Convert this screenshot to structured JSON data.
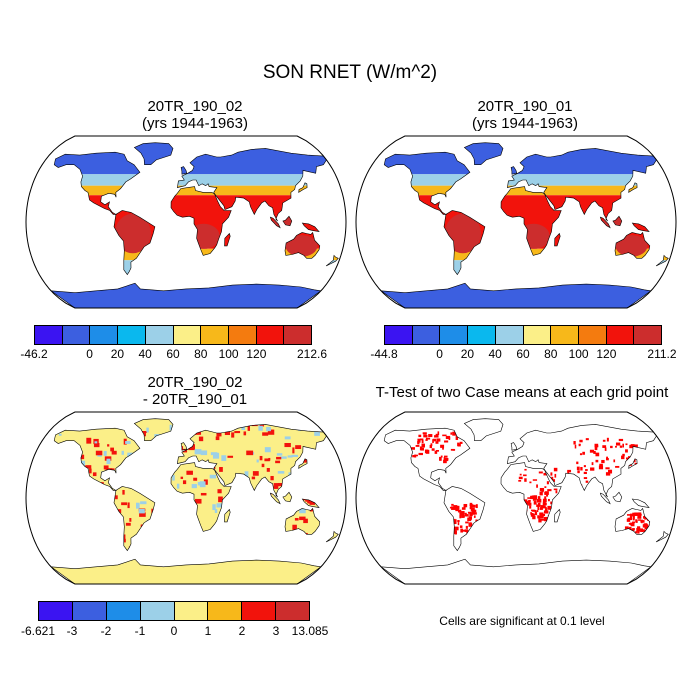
{
  "figure": {
    "title": "SON RNET (W/m^2)",
    "note": "Cells are significant at 0.1 level"
  },
  "panels": [
    {
      "title_line1": "20TR_190_02",
      "title_line2": "(yrs 1944-1963)"
    },
    {
      "title_line1": "20TR_190_01",
      "title_line2": "(yrs 1944-1963)"
    },
    {
      "title_line1": "20TR_190_02",
      "title_line2": "- 20TR_190_01"
    },
    {
      "title_line1": "T-Test of two Case means at each grid point",
      "title_line2": ""
    }
  ],
  "colorbars": [
    {
      "colors": [
        "#3b14f2",
        "#3c5fe0",
        "#1e8de8",
        "#0ab8ee",
        "#9cd0e8",
        "#fbef88",
        "#f7b81a",
        "#f47b0f",
        "#f2130c",
        "#cc2d2d"
      ],
      "labels": [
        "-46.2",
        "0",
        "20",
        "40",
        "60",
        "80",
        "100",
        "120",
        "212.6"
      ],
      "label_slots": [
        0,
        2,
        3,
        4,
        5,
        6,
        7,
        8,
        10
      ]
    },
    {
      "colors": [
        "#3b14f2",
        "#3c5fe0",
        "#1e8de8",
        "#0ab8ee",
        "#9cd0e8",
        "#fbef88",
        "#f7b81a",
        "#f47b0f",
        "#f2130c",
        "#cc2d2d"
      ],
      "labels": [
        "-44.8",
        "0",
        "20",
        "40",
        "60",
        "80",
        "100",
        "120",
        "211.2"
      ],
      "label_slots": [
        0,
        2,
        3,
        4,
        5,
        6,
        7,
        8,
        10
      ]
    },
    {
      "colors": [
        "#3b14f2",
        "#3c5fe0",
        "#1e8de8",
        "#9cd0e8",
        "#fbef88",
        "#f7b81a",
        "#f2130c",
        "#cc2d2d"
      ],
      "labels": [
        "-6.621",
        "-3",
        "-2",
        "-1",
        "0",
        "1",
        "2",
        "3",
        "13.085"
      ],
      "label_slots": [
        0,
        1,
        2,
        3,
        4,
        5,
        6,
        7,
        8
      ]
    }
  ],
  "map_styles": {
    "mean": {
      "polar": "#3c5fe0",
      "midlat": "#9cd0e8",
      "subtrop": "#f7b81a",
      "tropic": "#f2130c",
      "core": "#cc2d2d"
    },
    "diff": {
      "base": "#fbef88",
      "pos": "#f2130c",
      "neg": "#9cd0e8"
    },
    "ttest": {
      "sig": "#ff0000"
    }
  }
}
